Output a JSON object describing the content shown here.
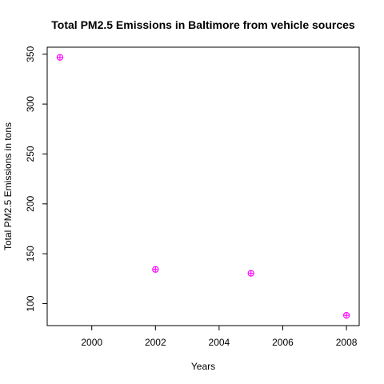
{
  "chart_data": {
    "type": "scatter",
    "title": "Total PM2.5 Emissions in Baltimore from vehicle sources",
    "xlabel": "Years",
    "ylabel": "Total PM2.5 Emissions in tons",
    "x": [
      1999,
      2002,
      2005,
      2008
    ],
    "y": [
      346.8,
      134.3,
      130.4,
      88.3
    ],
    "xlim": [
      1998.6,
      2008.4
    ],
    "ylim": [
      78.0,
      357.0
    ],
    "xticks": [
      2000,
      2002,
      2004,
      2006,
      2008
    ],
    "yticks": [
      100,
      150,
      200,
      250,
      300,
      350
    ],
    "marker_color": "#ff00ff",
    "marker_style": "circle-plus",
    "grid": false
  }
}
